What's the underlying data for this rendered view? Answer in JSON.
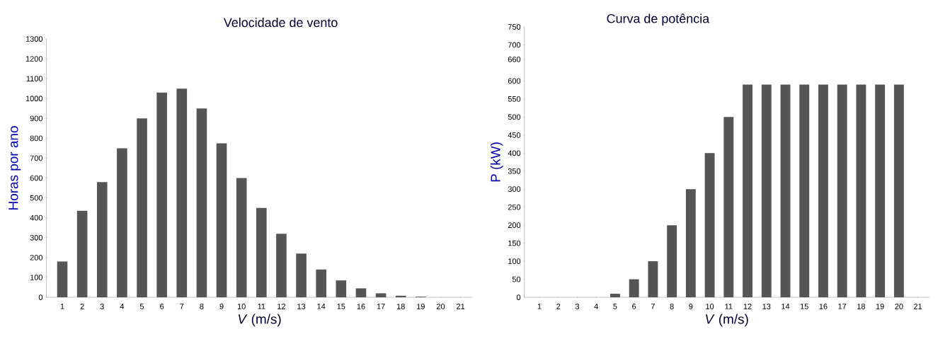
{
  "chart_data": [
    {
      "type": "bar",
      "title": "Velocidade de vento",
      "xlabel": "*V* (m/s)",
      "ylabel": "Horas por ano",
      "categories": [
        "1",
        "2",
        "3",
        "4",
        "5",
        "6",
        "7",
        "8",
        "9",
        "10",
        "11",
        "12",
        "13",
        "14",
        "15",
        "16",
        "17",
        "18",
        "19",
        "20",
        "21"
      ],
      "values": [
        180,
        435,
        580,
        750,
        900,
        1030,
        1050,
        950,
        775,
        600,
        450,
        320,
        220,
        140,
        85,
        45,
        20,
        8,
        3,
        null,
        null
      ],
      "color": "#555555",
      "ylim": [
        0,
        1300
      ],
      "yticks": [
        0,
        100,
        200,
        300,
        400,
        500,
        600,
        700,
        800,
        900,
        1000,
        1100,
        1200,
        1300
      ]
    },
    {
      "type": "bar",
      "title": "Curva de potência",
      "xlabel": "*V* (m/s)",
      "ylabel": "P (kW)",
      "categories": [
        "1",
        "2",
        "3",
        "4",
        "5",
        "6",
        "7",
        "8",
        "9",
        "10",
        "11",
        "12",
        "13",
        "14",
        "15",
        "16",
        "17",
        "18",
        "19",
        "20",
        "21"
      ],
      "values": [
        0,
        0,
        0,
        0,
        10,
        50,
        100,
        200,
        300,
        400,
        500,
        590,
        590,
        590,
        590,
        590,
        590,
        590,
        590,
        590,
        null
      ],
      "color": "#555555",
      "ylim": [
        0,
        750
      ],
      "yticks": [
        0,
        50,
        100,
        150,
        200,
        250,
        300,
        350,
        400,
        450,
        500,
        550,
        600,
        660,
        700,
        750
      ]
    }
  ]
}
